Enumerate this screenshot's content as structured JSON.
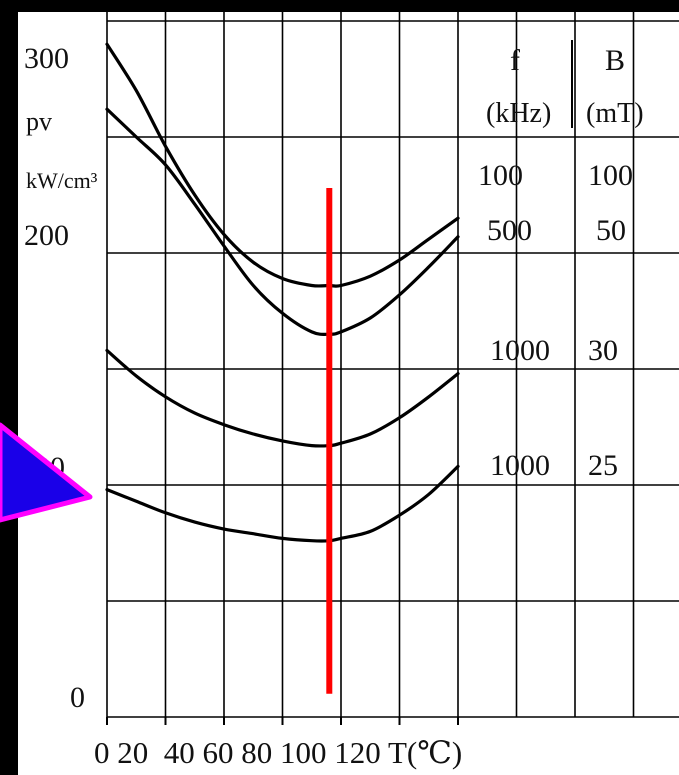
{
  "chart_data": {
    "type": "line",
    "y_axis": {
      "ticks": [
        {
          "value": 0,
          "label": "0"
        },
        {
          "value": 100,
          "label": "100"
        },
        {
          "value": 200,
          "label": "200"
        },
        {
          "value": 300,
          "label": "300"
        }
      ],
      "label_line1": "pv",
      "label_line2": "kW/cm³",
      "ylim": [
        0,
        300
      ]
    },
    "x_axis": {
      "tick_labels_text": "0 20  40 60 80 100 120 T(℃)",
      "xlim": [
        0,
        120
      ]
    },
    "table": {
      "header_f": "f",
      "header_B": "B",
      "unit_f": "(kHz)",
      "unit_B": "(mT)",
      "rows": [
        {
          "f": "100",
          "B": "100"
        },
        {
          "f": "500",
          "B": "50"
        },
        {
          "f": "1000",
          "B": "30"
        },
        {
          "f": "1000",
          "B": "25"
        }
      ]
    },
    "series": [
      {
        "x": [
          0,
          10,
          20,
          30,
          40,
          50,
          60,
          70,
          76,
          80,
          90,
          100,
          110,
          120
        ],
        "y": [
          290,
          270,
          246,
          225,
          208,
          196,
          189,
          186,
          186,
          186,
          190,
          197,
          206,
          215
        ]
      },
      {
        "x": [
          0,
          10,
          20,
          30,
          40,
          50,
          60,
          70,
          76,
          80,
          90,
          100,
          110,
          120
        ],
        "y": [
          262,
          250,
          238,
          221,
          203,
          186,
          174,
          166,
          165,
          166,
          172,
          182,
          194,
          207
        ]
      },
      {
        "x": [
          0,
          10,
          20,
          30,
          40,
          50,
          60,
          70,
          76,
          80,
          90,
          100,
          110,
          120
        ],
        "y": [
          158,
          147,
          138,
          131,
          126,
          122,
          119,
          117,
          117,
          118,
          122,
          129,
          138,
          148
        ]
      },
      {
        "x": [
          0,
          10,
          20,
          30,
          40,
          50,
          60,
          70,
          76,
          80,
          90,
          100,
          110,
          120
        ],
        "y": [
          98,
          93,
          88,
          84,
          81,
          79,
          77,
          76,
          76,
          77,
          80,
          87,
          96,
          108
        ]
      }
    ],
    "marker": {
      "x": 76,
      "y_range": [
        10,
        228
      ],
      "color": "#ff0000"
    },
    "grid": true,
    "legend": "none"
  },
  "colors": {
    "background": "#000000",
    "plot_area": "#ffffff",
    "grid": "#000000",
    "curve": "#000000",
    "marker": "#ff0000",
    "arrow_fill": "#1a00e8",
    "arrow_stroke": "#ff00ff"
  }
}
